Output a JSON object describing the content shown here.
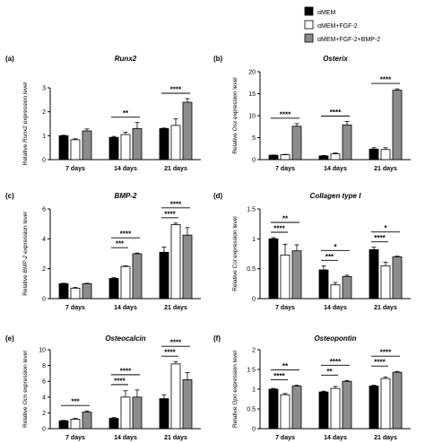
{
  "legend": {
    "entries": [
      {
        "label": "αMEM",
        "color": "#000000"
      },
      {
        "label": "αMEM+FGF-2",
        "color": "#ffffff"
      },
      {
        "label": "αMEM+FGF-2+BMP-2",
        "color": "#8c8c8c"
      }
    ]
  },
  "chart_data": [
    {
      "type": "bar",
      "letter": "(a)",
      "title": "Runx2",
      "ylabel_pre": "Relative ",
      "ylabel_ital": "Runx2",
      "ylabel_post": " expression level",
      "categories": [
        "7 days",
        "14 days",
        "21 days"
      ],
      "ylim": [
        0,
        3
      ],
      "ticks": [
        0,
        1,
        2,
        3
      ],
      "series": [
        {
          "color": "#000000",
          "values": [
            1.0,
            0.93,
            1.3
          ],
          "errors": [
            0.02,
            0.04,
            0.02
          ]
        },
        {
          "color": "#ffffff",
          "values": [
            0.83,
            1.05,
            1.43
          ],
          "errors": [
            0.04,
            0.1,
            0.28
          ]
        },
        {
          "color": "#8c8c8c",
          "values": [
            1.2,
            1.3,
            2.4
          ],
          "errors": [
            0.08,
            0.25,
            0.15
          ]
        }
      ],
      "sig": [
        {
          "cat": 1,
          "levels": [
            {
              "from": 0,
              "to": 2,
              "label": "**"
            }
          ]
        },
        {
          "cat": 2,
          "levels": [
            {
              "from": 0,
              "to": 2,
              "label": "****"
            }
          ]
        }
      ]
    },
    {
      "type": "bar",
      "letter": "(b)",
      "title": "Osterix",
      "ylabel_pre": "Relative ",
      "ylabel_ital": "Osx",
      "ylabel_post": " expression level",
      "categories": [
        "7 days",
        "14 days",
        "21 days"
      ],
      "ylim": [
        0,
        20
      ],
      "ticks": [
        0,
        5,
        10,
        15,
        20
      ],
      "series": [
        {
          "color": "#000000",
          "values": [
            1.0,
            0.85,
            2.4
          ],
          "errors": [
            0.05,
            0.1,
            0.3
          ]
        },
        {
          "color": "#ffffff",
          "values": [
            1.1,
            1.3,
            2.3
          ],
          "errors": [
            0.1,
            0.2,
            0.4
          ]
        },
        {
          "color": "#8c8c8c",
          "values": [
            7.6,
            7.9,
            15.8
          ],
          "errors": [
            0.6,
            0.8,
            0.3
          ]
        }
      ],
      "sig": [
        {
          "cat": 0,
          "levels": [
            {
              "from": 0,
              "to": 2,
              "label": "****"
            }
          ]
        },
        {
          "cat": 1,
          "levels": [
            {
              "from": 0,
              "to": 2,
              "label": "****"
            }
          ]
        },
        {
          "cat": 2,
          "levels": [
            {
              "from": 0,
              "to": 2,
              "label": "****"
            }
          ]
        }
      ]
    },
    {
      "type": "bar",
      "letter": "(c)",
      "title": "BMP-2",
      "ylabel_pre": "Relative ",
      "ylabel_ital": "BMP-2",
      "ylabel_post": " expression level",
      "categories": [
        "7 days",
        "14 days",
        "21 days"
      ],
      "ylim": [
        0,
        6
      ],
      "ticks": [
        0,
        2,
        4,
        6
      ],
      "series": [
        {
          "color": "#000000",
          "values": [
            1.0,
            1.35,
            3.1
          ],
          "errors": [
            0.03,
            0.05,
            0.35
          ]
        },
        {
          "color": "#ffffff",
          "values": [
            0.7,
            2.15,
            4.95
          ],
          "errors": [
            0.05,
            0.05,
            0.1
          ]
        },
        {
          "color": "#8c8c8c",
          "values": [
            1.0,
            3.0,
            4.25
          ],
          "errors": [
            0.03,
            0.05,
            0.5
          ]
        }
      ],
      "sig": [
        {
          "cat": 1,
          "levels": [
            {
              "from": 0,
              "to": 1,
              "label": "***"
            },
            {
              "from": 0,
              "to": 2,
              "label": "****"
            }
          ]
        },
        {
          "cat": 2,
          "levels": [
            {
              "from": 0,
              "to": 1,
              "label": "****"
            },
            {
              "from": 0,
              "to": 2,
              "label": "****"
            }
          ]
        }
      ]
    },
    {
      "type": "bar",
      "letter": "(d)",
      "title": "Collagen type I",
      "ylabel_pre": "Relative ",
      "ylabel_ital": "Col",
      "ylabel_post": " expression level",
      "categories": [
        "7 days",
        "14 days",
        "21 days"
      ],
      "ylim": [
        0,
        1.5
      ],
      "ticks": [
        0,
        0.5,
        1.0,
        1.5
      ],
      "series": [
        {
          "color": "#000000",
          "values": [
            1.0,
            0.48,
            0.82
          ],
          "errors": [
            0.02,
            0.07,
            0.04
          ]
        },
        {
          "color": "#ffffff",
          "values": [
            0.73,
            0.23,
            0.55
          ],
          "errors": [
            0.18,
            0.04,
            0.06
          ]
        },
        {
          "color": "#8c8c8c",
          "values": [
            0.8,
            0.37,
            0.7
          ],
          "errors": [
            0.1,
            0.02,
            0.01
          ]
        }
      ],
      "sig": [
        {
          "cat": 0,
          "levels": [
            {
              "from": 0,
              "to": 1,
              "label": "****"
            },
            {
              "from": 0,
              "to": 2,
              "label": "**"
            }
          ]
        },
        {
          "cat": 1,
          "levels": [
            {
              "from": 0,
              "to": 1,
              "label": "***"
            },
            {
              "from": 0,
              "to": 2,
              "label": "*"
            }
          ]
        },
        {
          "cat": 2,
          "levels": [
            {
              "from": 0,
              "to": 1,
              "label": "****"
            },
            {
              "from": 0,
              "to": 2,
              "label": "*"
            }
          ]
        }
      ]
    },
    {
      "type": "bar",
      "letter": "(e)",
      "title": "Osteocalcin",
      "ylabel_pre": "Relative ",
      "ylabel_ital": "Ocn",
      "ylabel_post": " expression level",
      "categories": [
        "7 days",
        "14 days",
        "21 days"
      ],
      "ylim": [
        0,
        10
      ],
      "ticks": [
        0,
        2,
        4,
        6,
        8,
        10
      ],
      "series": [
        {
          "color": "#000000",
          "values": [
            1.0,
            1.3,
            3.8
          ],
          "errors": [
            0.05,
            0.1,
            0.5
          ]
        },
        {
          "color": "#ffffff",
          "values": [
            1.2,
            4.0,
            8.2
          ],
          "errors": [
            0.1,
            0.8,
            0.3
          ]
        },
        {
          "color": "#8c8c8c",
          "values": [
            2.1,
            4.0,
            6.2
          ],
          "errors": [
            0.15,
            0.9,
            0.9
          ]
        }
      ],
      "sig": [
        {
          "cat": 0,
          "levels": [
            {
              "from": 0,
              "to": 2,
              "label": "***"
            }
          ]
        },
        {
          "cat": 1,
          "levels": [
            {
              "from": 0,
              "to": 1,
              "label": "****"
            },
            {
              "from": 0,
              "to": 2,
              "label": "****"
            }
          ]
        },
        {
          "cat": 2,
          "levels": [
            {
              "from": 0,
              "to": 1,
              "label": "****"
            },
            {
              "from": 0,
              "to": 2,
              "label": "****"
            }
          ]
        }
      ]
    },
    {
      "type": "bar",
      "letter": "(f)",
      "title": "Osteopontin",
      "ylabel_pre": "Relative ",
      "ylabel_ital": "Opn",
      "ylabel_post": " expression level",
      "categories": [
        "7 days",
        "14 days",
        "21 days"
      ],
      "ylim": [
        0,
        2.0
      ],
      "ticks": [
        0,
        0.5,
        1.0,
        1.5,
        2.0
      ],
      "series": [
        {
          "color": "#000000",
          "values": [
            1.0,
            0.93,
            1.08
          ],
          "errors": [
            0.02,
            0.02,
            0.02
          ]
        },
        {
          "color": "#ffffff",
          "values": [
            0.86,
            1.02,
            1.27
          ],
          "errors": [
            0.03,
            0.05,
            0.04
          ]
        },
        {
          "color": "#8c8c8c",
          "values": [
            1.08,
            1.2,
            1.43
          ],
          "errors": [
            0.02,
            0.02,
            0.02
          ]
        }
      ],
      "sig": [
        {
          "cat": 0,
          "levels": [
            {
              "from": 0,
              "to": 1,
              "label": "****"
            },
            {
              "from": 0,
              "to": 2,
              "label": "**"
            }
          ]
        },
        {
          "cat": 1,
          "levels": [
            {
              "from": 0,
              "to": 1,
              "label": "**"
            },
            {
              "from": 0,
              "to": 2,
              "label": "****"
            }
          ]
        },
        {
          "cat": 2,
          "levels": [
            {
              "from": 0,
              "to": 1,
              "label": "****"
            },
            {
              "from": 0,
              "to": 2,
              "label": "****"
            }
          ]
        }
      ]
    }
  ]
}
